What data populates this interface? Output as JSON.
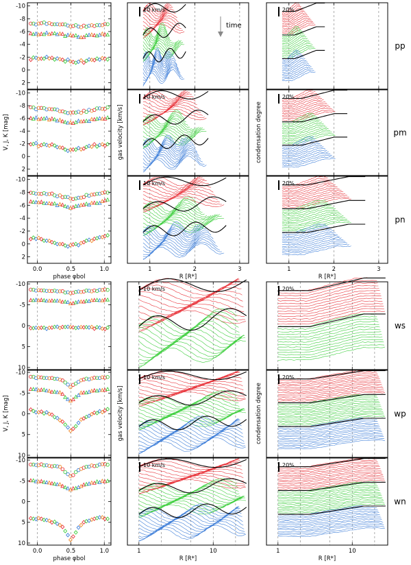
{
  "chart_data": {
    "type": "scatter",
    "top_group": {
      "left_panels": {
        "xlabel": "phase φbol",
        "ylabel": "V, J, K  [mag]",
        "xlim": [
          -0.15,
          1.1
        ],
        "x_ticks": [
          "0.0",
          "0.5",
          "1.0"
        ],
        "y_ticks": [
          "-10",
          "-8",
          "-6",
          "-4",
          "-2",
          "0",
          "2"
        ],
        "ylim": [
          3,
          -10.5
        ]
      },
      "middle_panels": {
        "xlabel": "R [R*]",
        "ylabel": "gas velocity [km/s]",
        "x_ticks": [
          "1",
          "2",
          "3"
        ],
        "xlim": [
          0.5,
          3.2
        ],
        "scale_label": "10 km/s"
      },
      "right_panels": {
        "xlabel": "R [R*]",
        "ylabel": "condensation degree",
        "x_ticks": [
          "1",
          "2",
          "3"
        ],
        "xlim": [
          0.5,
          3.2
        ],
        "scale_label": "20%"
      },
      "annotation": "time"
    },
    "bottom_group": {
      "left_panels": {
        "xlabel": "phase φbol",
        "ylabel": "V, J, K  [mag]",
        "xlim": [
          -0.15,
          1.1
        ],
        "x_ticks": [
          "0.0",
          "0.5",
          "1.0"
        ],
        "y_ticks": [
          "-10",
          "-5",
          "0",
          "5",
          "10"
        ],
        "ylim": [
          10.5,
          -10.5
        ]
      },
      "middle_panels": {
        "xlabel": "R [R*]",
        "ylabel": "gas velocity [km/s]",
        "x_ticks": [
          "1",
          "10"
        ],
        "scale": "log",
        "xlim": [
          0.7,
          30
        ],
        "scale_label": "10 km/s"
      },
      "right_panels": {
        "xlabel": "R [R*]",
        "ylabel": "condensation degree",
        "x_ticks": [
          "1",
          "10"
        ],
        "scale": "log",
        "xlim": [
          0.7,
          30
        ],
        "scale_label": "20%"
      }
    },
    "rows": [
      {
        "model": "pp",
        "V": [
          -7.2,
          -7.3,
          -7.1,
          -6.9,
          -6.8,
          -7.0,
          -7.2
        ],
        "J": [
          -5.6,
          -5.7,
          -5.5,
          -5.3,
          -5.2,
          -5.4,
          -5.6
        ],
        "K": [
          -1.8,
          -1.9,
          -1.6,
          -1.4,
          -1.3,
          -1.6,
          -1.8
        ]
      },
      {
        "model": "pm",
        "V": [
          -7.6,
          -7.5,
          -7.2,
          -6.8,
          -7.0,
          -7.4,
          -7.7
        ],
        "J": [
          -6.0,
          -5.9,
          -5.6,
          -5.3,
          -5.5,
          -5.8,
          -6.1
        ],
        "K": [
          -1.9,
          -1.8,
          -1.4,
          -1.0,
          -1.3,
          -1.7,
          -2.0
        ]
      },
      {
        "model": "pn",
        "V": [
          -8.0,
          -7.8,
          -7.4,
          -7.0,
          -7.3,
          -7.7,
          -8.1
        ],
        "J": [
          -6.6,
          -6.4,
          -6.0,
          -5.6,
          -5.9,
          -6.3,
          -6.7
        ],
        "K": [
          -1.0,
          -0.6,
          0.0,
          0.4,
          -0.2,
          -0.8,
          -1.3
        ]
      },
      {
        "model": "ws",
        "V": [
          -8.6,
          -8.4,
          -8.2,
          -7.8,
          -8.2,
          -8.4,
          -8.6
        ],
        "J": [
          -6.2,
          -6.0,
          -5.8,
          -5.4,
          -5.8,
          -6.0,
          -6.2
        ],
        "K": [
          0.6,
          0.5,
          0.4,
          0.2,
          0.4,
          0.5,
          0.6
        ]
      },
      {
        "model": "wp",
        "V": [
          -8.8,
          -8.7,
          -8.3,
          -6.5,
          -8.2,
          -8.6,
          -8.8
        ],
        "J": [
          -5.8,
          -5.6,
          -5.0,
          -3.0,
          -5.0,
          -5.5,
          -5.8
        ],
        "K": [
          -0.8,
          -0.2,
          1.5,
          4.2,
          1.6,
          -0.2,
          -0.9
        ]
      },
      {
        "model": "wn",
        "V": [
          -9.0,
          -8.8,
          -8.2,
          -6.0,
          -8.0,
          -8.7,
          -9.0
        ],
        "J": [
          -5.0,
          -4.6,
          -4.0,
          -2.8,
          -3.8,
          -4.6,
          -5.0
        ],
        "K": [
          4.0,
          4.5,
          5.5,
          9.5,
          5.5,
          4.0,
          4.0
        ]
      }
    ]
  },
  "page_title": ""
}
